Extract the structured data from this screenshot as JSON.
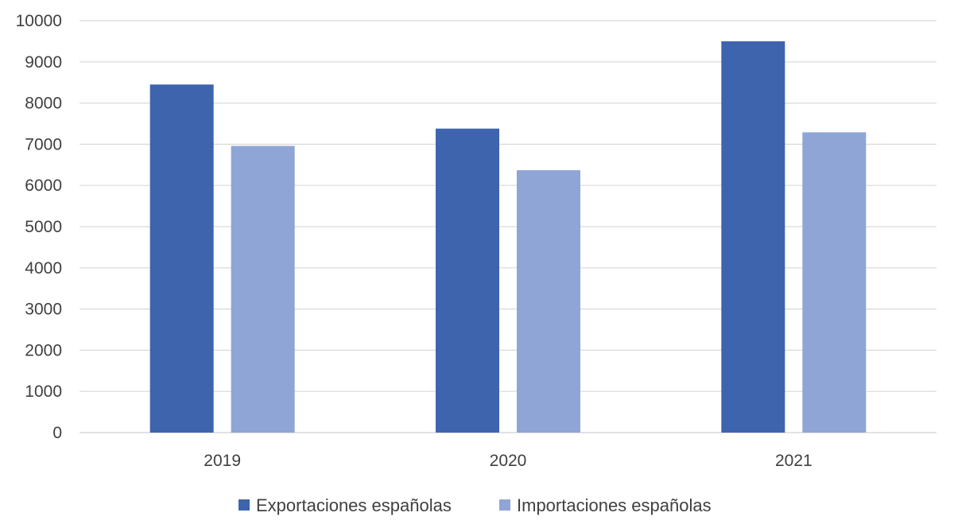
{
  "chart_data": {
    "type": "bar",
    "title": "",
    "xlabel": "",
    "ylabel": "",
    "categories": [
      "2019",
      "2020",
      "2021"
    ],
    "ylim": [
      0,
      10000
    ],
    "y_ticks": [
      0,
      1000,
      2000,
      3000,
      4000,
      5000,
      6000,
      7000,
      8000,
      9000,
      10000
    ],
    "grid": true,
    "legend_position": "bottom",
    "series": [
      {
        "name": "Exportaciones españolas",
        "color": "#3d64ad",
        "values": [
          8450,
          7380,
          9500
        ]
      },
      {
        "name": "Importaciones españolas",
        "color": "#8fa5d6",
        "values": [
          6960,
          6370,
          7290
        ]
      }
    ]
  },
  "colors": {
    "grid": "#d9d9d9",
    "text": "#404040",
    "background": "#ffffff"
  }
}
